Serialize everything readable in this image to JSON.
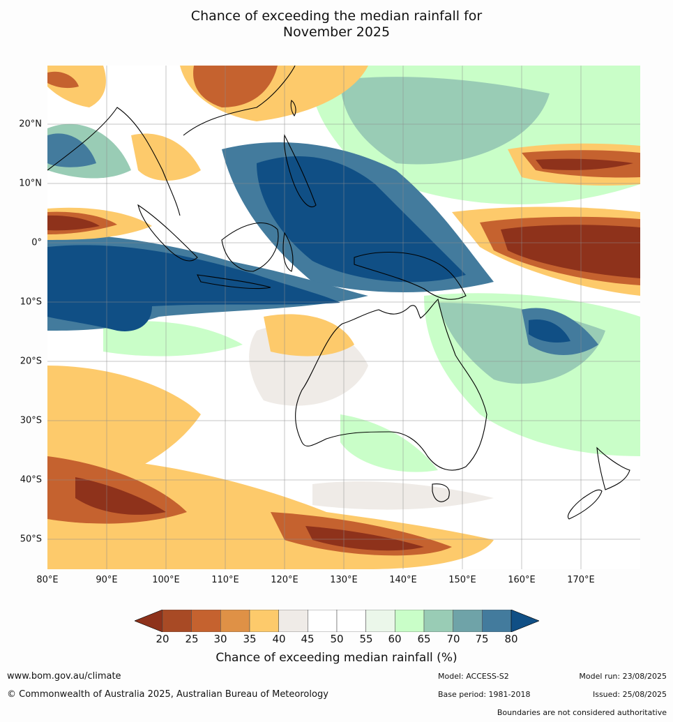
{
  "title_line1": "Chance of exceeding the median rainfall for",
  "title_line2": "November 2025",
  "lat_labels": [
    "20°N",
    "10°N",
    "0°",
    "10°S",
    "20°S",
    "30°S",
    "40°S",
    "50°S"
  ],
  "lon_labels": [
    "80°E",
    "90°E",
    "100°E",
    "110°E",
    "120°E",
    "130°E",
    "140°E",
    "150°E",
    "160°E",
    "170°E"
  ],
  "colorbar": {
    "ticks": [
      "20",
      "25",
      "30",
      "35",
      "40",
      "45",
      "50",
      "55",
      "60",
      "65",
      "70",
      "75",
      "80"
    ],
    "colors": [
      "#a84a25",
      "#c5622f",
      "#df9146",
      "#fdca6b",
      "#efebe7",
      "#ffffff",
      "#ffffff",
      "#ebf7ea",
      "#c9fec8",
      "#99ccb5",
      "#6fa3a8",
      "#437b9d"
    ],
    "under_color": "#8e321b",
    "over_color": "#104f85",
    "label": "Chance of exceeding median rainfall (%)"
  },
  "colors": {
    "very_dry": "#8e321b",
    "dry": "#c5622f",
    "mod_dry": "#fdca6b",
    "neutral": "#efebe7",
    "light_wet": "#c9fec8",
    "mod_wet": "#99ccb5",
    "wet": "#437b9d",
    "very_wet": "#104f85",
    "land_outline": "#000000"
  },
  "footer": {
    "website": "www.bom.gov.au/climate",
    "copyright": "© Commonwealth of Australia 2025, Australian Bureau of Meteorology",
    "model": "Model: ACCESS-S2",
    "base_period": "Base period: 1981-2018",
    "model_run": "Model run: 23/08/2025",
    "issued": "Issued: 25/08/2025",
    "disclaimer": "Boundaries are not considered authoritative"
  }
}
